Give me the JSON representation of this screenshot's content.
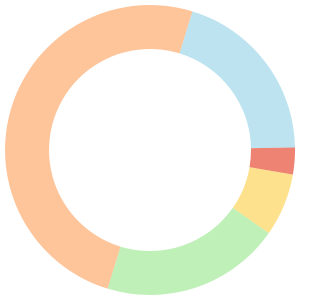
{
  "chart_data": {
    "type": "donut",
    "values": [
      20,
      3,
      7,
      20,
      50
    ],
    "colors": [
      "#bde3f0",
      "#ee8273",
      "#fde18c",
      "#bff0b8",
      "#fec49a"
    ]
  }
}
